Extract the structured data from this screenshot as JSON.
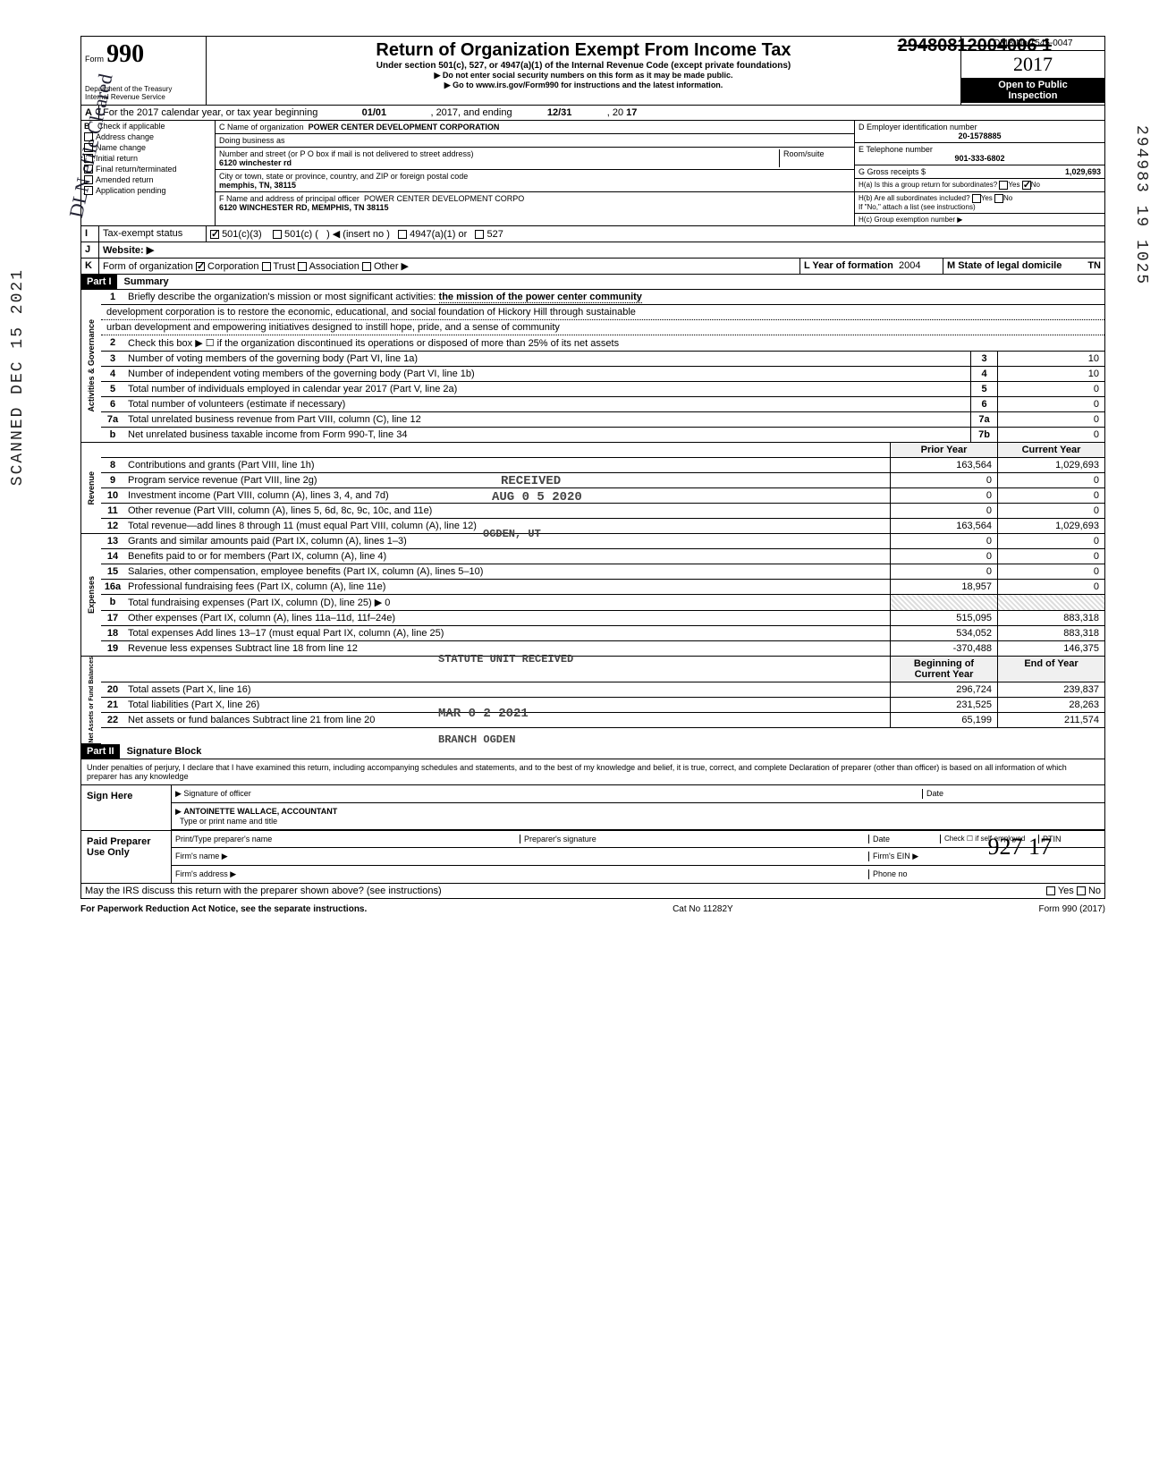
{
  "struck_id": "29480812004006 1",
  "header": {
    "form_label": "Form",
    "form_number": "990",
    "dept": "Department of the Treasury",
    "irs": "Internal Revenue Service",
    "title": "Return of Organization Exempt From Income Tax",
    "subtitle": "Under section 501(c), 527, or 4947(a)(1) of the Internal Revenue Code (except private foundations)",
    "note1": "▶ Do not enter social security numbers on this form as it may be made public.",
    "note2": "▶ Go to www.irs.gov/Form990 for instructions and the latest information.",
    "omb": "OMB No 1545-0047",
    "year": "2017",
    "open": "Open to Public",
    "inspection": "Inspection"
  },
  "line_a": {
    "label": "A",
    "text": "For the 2017 calendar year, or tax year beginning",
    "begin": "01/01",
    "mid": ", 2017, and ending",
    "end_month": "12/31",
    "end_year": "17",
    "yr_prefix": ", 20"
  },
  "block_b": {
    "label": "B",
    "check_label": "Check if applicable",
    "items": [
      {
        "label": "Address change",
        "checked": false
      },
      {
        "label": "Name change",
        "checked": false
      },
      {
        "label": "Initial return",
        "checked": false
      },
      {
        "label": "Final return/terminated",
        "checked": false
      },
      {
        "label": "Amended return",
        "checked": false
      },
      {
        "label": "Application pending",
        "checked": false
      }
    ]
  },
  "block_c": {
    "c_label": "C Name of organization",
    "name": "POWER CENTER DEVELOPMENT CORPORATION",
    "dba_label": "Doing business as",
    "dba": "",
    "street_label": "Number and street (or P O box if mail is not delivered to street address)",
    "street": "6120 winchester rd",
    "room_label": "Room/suite",
    "room": "",
    "city_label": "City or town, state or province, country, and ZIP or foreign postal code",
    "city": "memphis, TN, 38115",
    "f_label": "F Name and address of principal officer",
    "f_name": "POWER CENTER DEVELOPMENT CORPO",
    "f_addr": "6120 WINCHESTER RD, MEMPHIS, TN 38115"
  },
  "block_d": {
    "d_label": "D Employer identification number",
    "ein": "20-1578885",
    "e_label": "E Telephone number",
    "phone": "901-333-6802",
    "g_label": "G Gross receipts $",
    "gross": "1,029,693",
    "ha_label": "H(a) Is this a group return for subordinates?",
    "ha_yes": false,
    "ha_no": true,
    "hb_label": "H(b) Are all subordinates included?",
    "hb_note": "If \"No,\" attach a list (see instructions)",
    "hc_label": "H(c) Group exemption number ▶"
  },
  "tax_exempt": {
    "label_i": "I",
    "label": "Tax-exempt status",
    "c501c3": true,
    "c501c_label": "501(c)(3)",
    "c501c": "501(c) (",
    "c501c_insert": ") ◀ (insert no )",
    "c4947": "4947(a)(1) or",
    "c527": "527"
  },
  "website": {
    "label_j": "J",
    "label": "Website: ▶",
    "val": ""
  },
  "line_k": {
    "label": "K",
    "form_label": "Form of organization",
    "corp": true,
    "corp_label": "Corporation",
    "trust": false,
    "trust_label": "Trust",
    "assoc": false,
    "assoc_label": "Association",
    "other": false,
    "other_label": "Other ▶",
    "l_label": "L Year of formation",
    "l_val": "2004",
    "m_label": "M State of legal domicile",
    "m_val": "TN"
  },
  "part1": {
    "part": "Part I",
    "title": "Summary",
    "q1_num": "1",
    "q1": "Briefly describe the organization's mission or most significant activities:",
    "mission1": "the mission of the power center community",
    "mission2": "development corporation is to restore the economic, educational, and social foundation of Hickory Hill through sustainable",
    "mission3": "urban development and empowering initiatives designed to instill hope, pride, and a sense of community",
    "q2_num": "2",
    "q2": "Check this box ▶ ☐ if the organization discontinued its operations or disposed of more than 25% of its net assets",
    "rows_gov": [
      {
        "n": "3",
        "desc": "Number of voting members of the governing body (Part VI, line 1a)",
        "ln": "3",
        "v": "10"
      },
      {
        "n": "4",
        "desc": "Number of independent voting members of the governing body (Part VI, line 1b)",
        "ln": "4",
        "v": "10"
      },
      {
        "n": "5",
        "desc": "Total number of individuals employed in calendar year 2017 (Part V, line 2a)",
        "ln": "5",
        "v": "0"
      },
      {
        "n": "6",
        "desc": "Total number of volunteers (estimate if necessary)",
        "ln": "6",
        "v": "0"
      },
      {
        "n": "7a",
        "desc": "Total unrelated business revenue from Part VIII, column (C), line 12",
        "ln": "7a",
        "v": "0"
      },
      {
        "n": "b",
        "desc": "Net unrelated business taxable income from Form 990-T, line 34",
        "ln": "7b",
        "v": "0"
      }
    ],
    "hdr_prior": "Prior Year",
    "hdr_current": "Current Year",
    "rows_rev": [
      {
        "n": "8",
        "desc": "Contributions and grants (Part VIII, line 1h)",
        "c1": "163,564",
        "c2": "1,029,693"
      },
      {
        "n": "9",
        "desc": "Program service revenue (Part VIII, line 2g)",
        "c1": "0",
        "c2": "0"
      },
      {
        "n": "10",
        "desc": "Investment income (Part VIII, column (A), lines 3, 4, and 7d)",
        "c1": "0",
        "c2": "0"
      },
      {
        "n": "11",
        "desc": "Other revenue (Part VIII, column (A), lines 5, 6d, 8c, 9c, 10c, and 11e)",
        "c1": "0",
        "c2": "0"
      },
      {
        "n": "12",
        "desc": "Total revenue—add lines 8 through 11 (must equal Part VIII, column (A), line 12)",
        "c1": "163,564",
        "c2": "1,029,693"
      }
    ],
    "rows_exp": [
      {
        "n": "13",
        "desc": "Grants and similar amounts paid (Part IX, column (A), lines 1–3)",
        "c1": "0",
        "c2": "0"
      },
      {
        "n": "14",
        "desc": "Benefits paid to or for members (Part IX, column (A), line 4)",
        "c1": "0",
        "c2": "0"
      },
      {
        "n": "15",
        "desc": "Salaries, other compensation, employee benefits (Part IX, column (A), lines 5–10)",
        "c1": "0",
        "c2": "0"
      },
      {
        "n": "16a",
        "desc": "Professional fundraising fees (Part IX, column (A), line 11e)",
        "c1": "18,957",
        "c2": "0"
      },
      {
        "n": "b",
        "desc": "Total fundraising expenses (Part IX, column (D), line 25) ▶  0",
        "c1": "",
        "c2": "",
        "shade": true
      },
      {
        "n": "17",
        "desc": "Other expenses (Part IX, column (A), lines 11a–11d, 11f–24e)",
        "c1": "515,095",
        "c2": "883,318"
      },
      {
        "n": "18",
        "desc": "Total expenses Add lines 13–17 (must equal Part IX, column (A), line 25)",
        "c1": "534,052",
        "c2": "883,318"
      },
      {
        "n": "19",
        "desc": "Revenue less expenses Subtract line 18 from line 12",
        "c1": "-370,488",
        "c2": "146,375"
      }
    ],
    "hdr_boy": "Beginning of Current Year",
    "hdr_eoy": "End of Year",
    "rows_na": [
      {
        "n": "20",
        "desc": "Total assets (Part X, line 16)",
        "c1": "296,724",
        "c2": "239,837"
      },
      {
        "n": "21",
        "desc": "Total liabilities (Part X, line 26)",
        "c1": "231,525",
        "c2": "28,263"
      },
      {
        "n": "22",
        "desc": "Net assets or fund balances Subtract line 21 from line 20",
        "c1": "65,199",
        "c2": "211,574"
      }
    ],
    "side_gov": "Activities & Governance",
    "side_rev": "Revenue",
    "side_exp": "Expenses",
    "side_na": "Net Assets or Fund Balances"
  },
  "part2": {
    "part": "Part II",
    "title": "Signature Block",
    "perjury": "Under penalties of perjury, I declare that I have examined this return, including accompanying schedules and statements, and to the best of my knowledge and belief, it is true, correct, and complete Declaration of preparer (other than officer) is based on all information of which preparer has any knowledge",
    "sign_here": "Sign Here",
    "sig_officer": "Signature of officer",
    "date": "Date",
    "name_title": "ANTOINETTE WALLACE, ACCOUNTANT",
    "type_print": "Type or print name and title",
    "paid": "Paid Preparer Use Only",
    "prep_name_label": "Print/Type preparer's name",
    "prep_sig_label": "Preparer's signature",
    "prep_date": "Date",
    "check_self": "Check ☐ if self-employed",
    "ptin": "PTIN",
    "firm_name": "Firm's name ▶",
    "firm_ein": "Firm's EIN ▶",
    "firm_addr": "Firm's address ▶",
    "phone_no": "Phone no",
    "may_irs": "May the IRS discuss this return with the preparer shown above? (see instructions)",
    "yes": "Yes",
    "no": "No"
  },
  "footer": {
    "left": "For Paperwork Reduction Act Notice, see the separate instructions.",
    "mid": "Cat No 11282Y",
    "right": "Form 990 (2017)"
  },
  "stamps": {
    "received1": "RECEIVED",
    "date1": "AUG 0 5 2020",
    "ogden": "OGDEN, UT",
    "received2": "STATUTE UNIT RECEIVED",
    "date2": "MAR 0 2 2021",
    "branch": "BRANCH OGDEN",
    "vert_left": "SCANNED DEC 15 2021",
    "vert_right": "294983 19 1025",
    "hw_bottom": "927     17",
    "cursive": "DLN efile Cleared"
  },
  "colors": {
    "text": "#000000",
    "bg": "#ffffff",
    "header_black": "#000000",
    "shade": "#dddddd"
  }
}
